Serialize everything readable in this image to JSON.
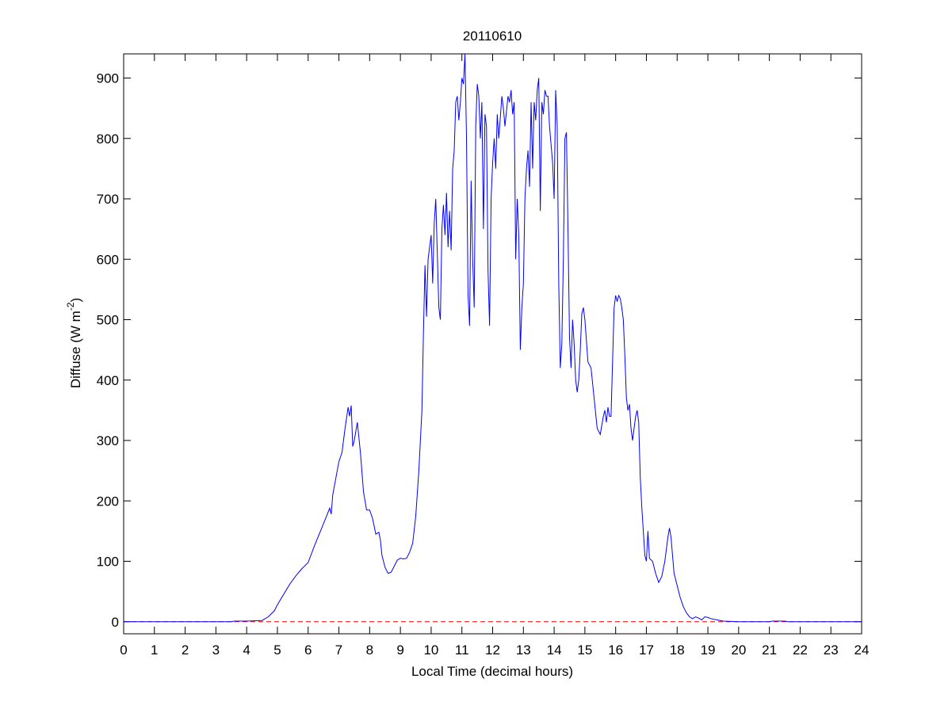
{
  "chart_data": {
    "type": "line",
    "title": "20110610",
    "x_label": "Local Time (decimal hours)",
    "y_label": [
      "Diffuse (W m",
      "-2",
      ")"
    ],
    "x": [
      0,
      3.5,
      3.6,
      4,
      4.5,
      4.7,
      4.9,
      5.0,
      5.2,
      5.4,
      5.6,
      5.8,
      6.0,
      6.2,
      6.4,
      6.6,
      6.7,
      6.75,
      6.8,
      7.0,
      7.1,
      7.2,
      7.3,
      7.35,
      7.4,
      7.45,
      7.5,
      7.6,
      7.7,
      7.8,
      7.9,
      8.0,
      8.1,
      8.2,
      8.3,
      8.35,
      8.4,
      8.5,
      8.6,
      8.7,
      8.8,
      8.9,
      9.0,
      9.1,
      9.2,
      9.3,
      9.4,
      9.5,
      9.6,
      9.7,
      9.75,
      9.8,
      9.85,
      9.9,
      9.95,
      10.0,
      10.05,
      10.1,
      10.15,
      10.2,
      10.25,
      10.3,
      10.35,
      10.4,
      10.45,
      10.5,
      10.55,
      10.6,
      10.65,
      10.7,
      10.75,
      10.8,
      10.85,
      10.9,
      10.95,
      11.0,
      11.05,
      11.1,
      11.15,
      11.2,
      11.25,
      11.3,
      11.35,
      11.4,
      11.45,
      11.5,
      11.55,
      11.6,
      11.65,
      11.7,
      11.75,
      11.8,
      11.85,
      11.9,
      11.95,
      12.0,
      12.05,
      12.1,
      12.15,
      12.2,
      12.3,
      12.35,
      12.4,
      12.5,
      12.55,
      12.6,
      12.65,
      12.7,
      12.75,
      12.8,
      12.85,
      12.9,
      12.95,
      13.0,
      13.05,
      13.1,
      13.15,
      13.2,
      13.25,
      13.3,
      13.35,
      13.4,
      13.45,
      13.5,
      13.55,
      13.6,
      13.65,
      13.7,
      13.75,
      13.8,
      13.85,
      13.9,
      13.95,
      14.0,
      14.05,
      14.1,
      14.15,
      14.2,
      14.25,
      14.3,
      14.35,
      14.4,
      14.45,
      14.5,
      14.55,
      14.6,
      14.65,
      14.7,
      14.75,
      14.8,
      14.85,
      14.9,
      14.95,
      15.0,
      15.1,
      15.2,
      15.3,
      15.4,
      15.5,
      15.6,
      15.65,
      15.7,
      15.75,
      15.8,
      15.85,
      15.9,
      15.95,
      16.0,
      16.05,
      16.1,
      16.15,
      16.2,
      16.25,
      16.3,
      16.35,
      16.4,
      16.45,
      16.5,
      16.55,
      16.6,
      16.65,
      16.7,
      16.75,
      16.8,
      16.85,
      16.9,
      16.95,
      17.0,
      17.05,
      17.1,
      17.2,
      17.3,
      17.4,
      17.5,
      17.6,
      17.7,
      17.75,
      17.8,
      17.9,
      18.0,
      18.1,
      18.2,
      18.3,
      18.4,
      18.5,
      18.6,
      18.7,
      18.8,
      18.9,
      19.0,
      19.1,
      19.3,
      19.5,
      20.0,
      21.0,
      21.1,
      21.5,
      21.6,
      24
    ],
    "series": [
      {
        "color": "#0000ff",
        "values": [
          0,
          0,
          1,
          1,
          2,
          8,
          18,
          28,
          45,
          62,
          76,
          88,
          98,
          125,
          150,
          175,
          188,
          178,
          210,
          265,
          280,
          320,
          355,
          340,
          358,
          290,
          300,
          330,
          280,
          215,
          185,
          185,
          170,
          145,
          148,
          135,
          110,
          90,
          80,
          82,
          92,
          102,
          105,
          104,
          105,
          115,
          130,
          175,
          250,
          350,
          480,
          590,
          505,
          600,
          620,
          640,
          560,
          660,
          700,
          610,
          520,
          500,
          650,
          690,
          640,
          710,
          620,
          680,
          615,
          750,
          780,
          860,
          870,
          830,
          860,
          900,
          890,
          940,
          800,
          540,
          490,
          730,
          600,
          520,
          820,
          890,
          870,
          800,
          860,
          650,
          840,
          820,
          580,
          490,
          700,
          760,
          800,
          750,
          840,
          800,
          870,
          850,
          820,
          870,
          860,
          880,
          840,
          860,
          600,
          700,
          640,
          450,
          520,
          560,
          700,
          750,
          780,
          720,
          860,
          750,
          860,
          830,
          880,
          900,
          680,
          860,
          840,
          880,
          870,
          870,
          820,
          790,
          760,
          700,
          880,
          820,
          560,
          420,
          460,
          600,
          800,
          810,
          650,
          470,
          420,
          500,
          460,
          400,
          380,
          400,
          450,
          510,
          520,
          500,
          430,
          420,
          370,
          320,
          310,
          340,
          350,
          330,
          355,
          340,
          340,
          430,
          520,
          540,
          530,
          540,
          535,
          520,
          500,
          440,
          370,
          350,
          360,
          320,
          300,
          320,
          340,
          350,
          330,
          240,
          190,
          150,
          110,
          100,
          150,
          105,
          100,
          80,
          65,
          75,
          100,
          140,
          155,
          140,
          80,
          60,
          40,
          25,
          15,
          8,
          5,
          8,
          6,
          3,
          8,
          7,
          5,
          3,
          1,
          0,
          0,
          1,
          1,
          0,
          0
        ]
      }
    ],
    "refline": {
      "y": 0,
      "color": "#ff0000",
      "dashed": true
    },
    "xlim": [
      0,
      24
    ],
    "xticks": [
      0,
      1,
      2,
      3,
      4,
      5,
      6,
      7,
      8,
      9,
      10,
      11,
      12,
      13,
      14,
      15,
      16,
      17,
      18,
      19,
      20,
      21,
      22,
      23,
      24
    ],
    "ylim": [
      -20,
      940
    ],
    "yticks": [
      0,
      100,
      200,
      300,
      400,
      500,
      600,
      700,
      800,
      900
    ]
  }
}
